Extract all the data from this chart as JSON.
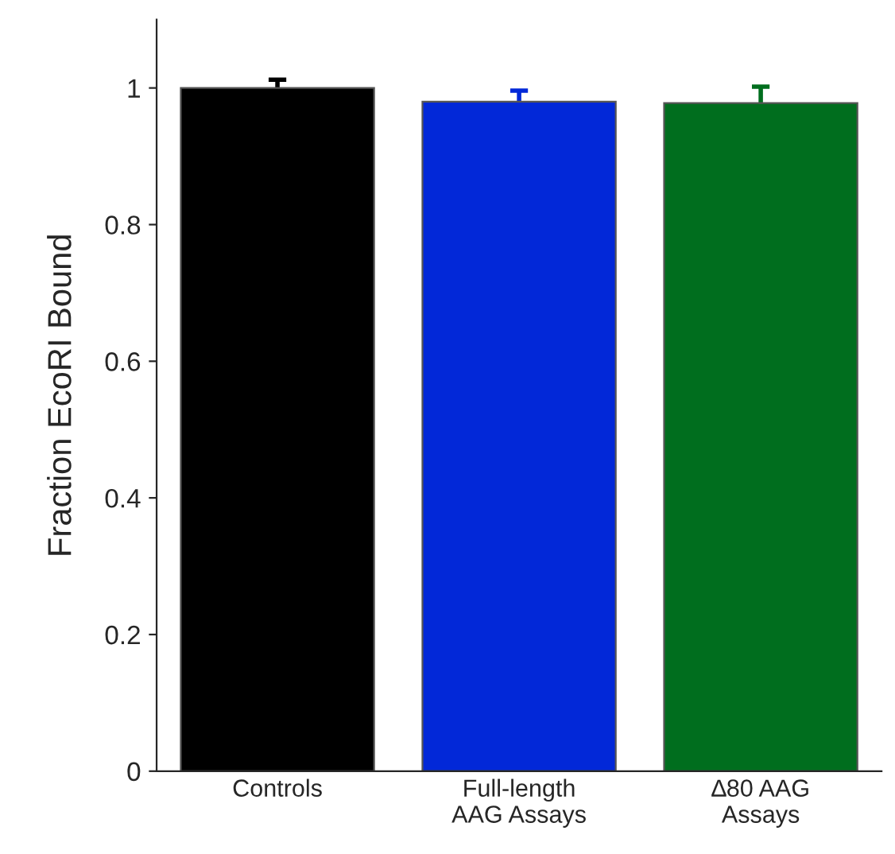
{
  "chart_data": {
    "type": "bar",
    "ylabel": "Fraction EcoRI Bound",
    "categories": [
      "Controls",
      "Full-length\nAAG Assays",
      "∆80 AAG\nAssays"
    ],
    "values": [
      1.0,
      0.98,
      0.978
    ],
    "errors": [
      0.012,
      0.016,
      0.024
    ],
    "colors": [
      "#000000",
      "#0228d8",
      "#006e1e"
    ],
    "ylim": [
      0,
      1.1
    ],
    "yticks": [
      0,
      0.2,
      0.4,
      0.6,
      0.8,
      1
    ],
    "grid": false
  }
}
